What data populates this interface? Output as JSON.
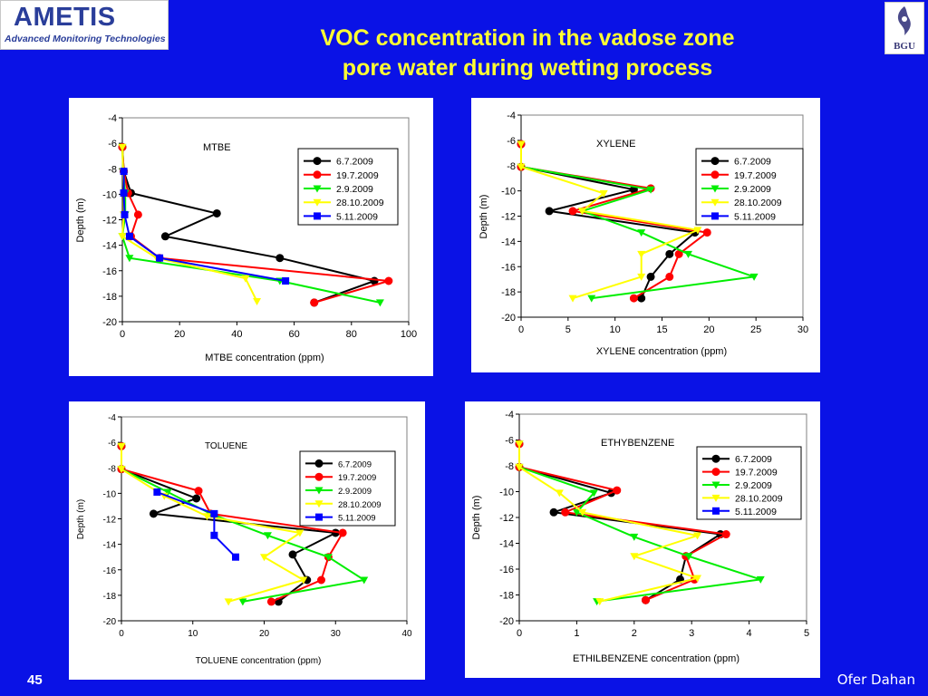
{
  "header": {
    "logo_text": "AMETIS",
    "logo_tagline": "Advanced Monitoring Technologies",
    "seal_text": "BGU",
    "title_line1": "VOC concentration in the vadose zone",
    "title_line2": "pore water during wetting process"
  },
  "footer": {
    "slide_number": "45",
    "author": "Ofer Dahan"
  },
  "colors": {
    "background": "#0a12e6",
    "title": "#ffff33",
    "series_6_7_2009": "#000000",
    "series_19_7_2009": "#ff0000",
    "series_2_9_2009": "#00ee00",
    "series_28_10_2009": "#ffff00",
    "series_5_11_2009": "#0000ff"
  },
  "chart_data": [
    {
      "type": "line",
      "title": "MTBE",
      "xlabel": "MTBE concentration (ppm)",
      "ylabel": "Depth (m)",
      "xlim": [
        0,
        100
      ],
      "ylim": [
        -20,
        -4
      ],
      "xticks": [
        "0",
        "20",
        "40",
        "60",
        "80",
        "100"
      ],
      "yticks": [
        "-4",
        "-6",
        "-8",
        "-10",
        "-12",
        "-14",
        "-16",
        "-18",
        "-20"
      ],
      "grid": false,
      "legend_position": "upper-right",
      "series": [
        {
          "name": "6.7.2009",
          "color": "#000000",
          "marker": "circle",
          "points": [
            [
              0,
              -6.3
            ],
            [
              0.5,
              -8.2
            ],
            [
              3,
              -9.9
            ],
            [
              33,
              -11.5
            ],
            [
              15,
              -13.3
            ],
            [
              55,
              -15
            ],
            [
              88,
              -16.8
            ],
            [
              67,
              -18.5
            ]
          ]
        },
        {
          "name": "19.7.2009",
          "color": "#ff0000",
          "marker": "circle",
          "points": [
            [
              0,
              -6.3
            ],
            [
              0.5,
              -8.2
            ],
            [
              2,
              -9.9
            ],
            [
              5.5,
              -11.6
            ],
            [
              3,
              -13.3
            ],
            [
              13,
              -15
            ],
            [
              93,
              -16.8
            ],
            [
              67,
              -18.5
            ]
          ]
        },
        {
          "name": "2.9.2009",
          "color": "#00ee00",
          "marker": "triangle",
          "points": [
            [
              0,
              -6.3
            ],
            [
              0.3,
              -8.2
            ],
            [
              1,
              -9.9
            ],
            [
              1,
              -11.6
            ],
            [
              0,
              -13.3
            ],
            [
              2.5,
              -15
            ],
            [
              55,
              -16.8
            ],
            [
              90,
              -18.5
            ]
          ]
        },
        {
          "name": "28.10.2009",
          "color": "#ffff00",
          "marker": "triangle",
          "points": [
            [
              0,
              -6.3
            ],
            [
              0.3,
              -8.2
            ],
            [
              0.5,
              -9.9
            ],
            [
              0.5,
              -11.6
            ],
            [
              0,
              -13.3
            ],
            [
              12,
              -15
            ],
            [
              43,
              -16.6
            ],
            [
              47,
              -18.4
            ]
          ]
        },
        {
          "name": "5.11.2009",
          "color": "#0000ff",
          "marker": "square",
          "points": [
            [
              0.5,
              -8.2
            ],
            [
              0.5,
              -9.9
            ],
            [
              0.8,
              -11.6
            ],
            [
              2.5,
              -13.3
            ],
            [
              13,
              -15
            ],
            [
              57,
              -16.8
            ]
          ]
        }
      ]
    },
    {
      "type": "line",
      "title": "XYLENE",
      "xlabel": "XYLENE concentration (ppm)",
      "ylabel": "Depth (m)",
      "xlim": [
        0,
        30
      ],
      "ylim": [
        -20,
        -4
      ],
      "xticks": [
        "0",
        "5",
        "10",
        "15",
        "20",
        "25",
        "30"
      ],
      "yticks": [
        "-4",
        "-6",
        "-8",
        "-10",
        "-12",
        "-14",
        "-16",
        "-18",
        "-20"
      ],
      "grid": false,
      "legend_position": "upper-right",
      "series": [
        {
          "name": "6.7.2009",
          "color": "#000000",
          "marker": "circle",
          "points": [
            [
              0,
              -6.3
            ],
            [
              0,
              -8.1
            ],
            [
              12,
              -9.9
            ],
            [
              3,
              -11.6
            ],
            [
              18.5,
              -13.3
            ],
            [
              15.8,
              -15
            ],
            [
              13.8,
              -16.8
            ],
            [
              12.8,
              -18.5
            ]
          ]
        },
        {
          "name": "19.7.2009",
          "color": "#ff0000",
          "marker": "circle",
          "points": [
            [
              0,
              -6.3
            ],
            [
              0,
              -8.1
            ],
            [
              13.8,
              -9.8
            ],
            [
              5.5,
              -11.6
            ],
            [
              19.8,
              -13.3
            ],
            [
              16.8,
              -15
            ],
            [
              15.8,
              -16.8
            ],
            [
              12,
              -18.5
            ]
          ]
        },
        {
          "name": "2.9.2009",
          "color": "#00ee00",
          "marker": "triangle",
          "points": [
            [
              0,
              -6.3
            ],
            [
              0,
              -8.1
            ],
            [
              13.8,
              -9.9
            ],
            [
              6.5,
              -11.6
            ],
            [
              12.8,
              -13.3
            ],
            [
              17.8,
              -15
            ],
            [
              24.8,
              -16.8
            ],
            [
              7.5,
              -18.5
            ]
          ]
        },
        {
          "name": "28.10.2009",
          "color": "#ffff00",
          "marker": "triangle",
          "points": [
            [
              0,
              -6.3
            ],
            [
              0,
              -8.1
            ],
            [
              8.8,
              -10.2
            ],
            [
              6.5,
              -11.6
            ],
            [
              18.8,
              -13.1
            ],
            [
              12.8,
              -15
            ],
            [
              12.8,
              -16.8
            ],
            [
              5.5,
              -18.5
            ]
          ]
        },
        {
          "name": "5.11.2009",
          "color": "#0000ff",
          "marker": "square",
          "points": []
        }
      ]
    },
    {
      "type": "line",
      "title": "TOLUENE",
      "xlabel": "TOLUENE concentration (ppm)",
      "ylabel": "Depth (m)",
      "xlim": [
        0,
        40
      ],
      "ylim": [
        -20,
        -4
      ],
      "xticks": [
        "0",
        "10",
        "20",
        "30",
        "40"
      ],
      "yticks": [
        "-4",
        "-6",
        "-8",
        "-10",
        "-12",
        "-14",
        "-16",
        "-18",
        "-20"
      ],
      "grid": false,
      "legend_position": "upper-right",
      "series": [
        {
          "name": "6.7.2009",
          "color": "#000000",
          "marker": "circle",
          "points": [
            [
              0,
              -6.3
            ],
            [
              0,
              -8.1
            ],
            [
              10.5,
              -10.4
            ],
            [
              4.5,
              -11.6
            ],
            [
              30,
              -13.1
            ],
            [
              24,
              -14.8
            ],
            [
              26,
              -16.8
            ],
            [
              22,
              -18.5
            ]
          ]
        },
        {
          "name": "19.7.2009",
          "color": "#ff0000",
          "marker": "circle",
          "points": [
            [
              0,
              -6.3
            ],
            [
              0,
              -8.1
            ],
            [
              10.8,
              -9.8
            ],
            [
              12.5,
              -11.6
            ],
            [
              31,
              -13.1
            ],
            [
              29,
              -15
            ],
            [
              28,
              -16.8
            ],
            [
              21,
              -18.5
            ]
          ]
        },
        {
          "name": "2.9.2009",
          "color": "#00ee00",
          "marker": "triangle",
          "points": [
            [
              0,
              -6.3
            ],
            [
              0,
              -8.1
            ],
            [
              6.5,
              -9.9
            ],
            [
              12.5,
              -11.6
            ],
            [
              20.5,
              -13.3
            ],
            [
              29,
              -15
            ],
            [
              34,
              -16.8
            ],
            [
              17,
              -18.5
            ]
          ]
        },
        {
          "name": "28.10.2009",
          "color": "#ffff00",
          "marker": "triangle",
          "points": [
            [
              0,
              -6.3
            ],
            [
              0,
              -8.1
            ],
            [
              6,
              -10.2
            ],
            [
              12,
              -11.8
            ],
            [
              25,
              -13.1
            ],
            [
              20,
              -15
            ],
            [
              25.5,
              -16.8
            ],
            [
              15,
              -18.5
            ]
          ]
        },
        {
          "name": "5.11.2009",
          "color": "#0000ff",
          "marker": "square",
          "points": [
            [
              5,
              -9.9
            ],
            [
              13,
              -11.6
            ],
            [
              13,
              -13.3
            ],
            [
              16,
              -15
            ]
          ]
        }
      ]
    },
    {
      "type": "line",
      "title": "ETHYBENZENE",
      "xlabel": "ETHILBENZENE concentration (ppm)",
      "ylabel": "Depth (m)",
      "xlim": [
        0,
        5
      ],
      "ylim": [
        -20,
        -4
      ],
      "xticks": [
        "0",
        "1",
        "2",
        "3",
        "4",
        "5"
      ],
      "yticks": [
        "-4",
        "-6",
        "-8",
        "-10",
        "-12",
        "-14",
        "-16",
        "-18",
        "-20"
      ],
      "grid": false,
      "legend_position": "upper-right",
      "series": [
        {
          "name": "6.7.2009",
          "color": "#000000",
          "marker": "circle",
          "points": [
            [
              0,
              -6.3
            ],
            [
              0,
              -8.1
            ],
            [
              1.6,
              -10.1
            ],
            [
              0.6,
              -11.6
            ],
            [
              3.5,
              -13.3
            ],
            [
              2.9,
              -15
            ],
            [
              2.8,
              -16.8
            ],
            [
              2.2,
              -18.4
            ]
          ]
        },
        {
          "name": "19.7.2009",
          "color": "#ff0000",
          "marker": "circle",
          "points": [
            [
              0,
              -6.3
            ],
            [
              0,
              -8.1
            ],
            [
              1.7,
              -9.9
            ],
            [
              0.8,
              -11.6
            ],
            [
              3.6,
              -13.3
            ],
            [
              2.9,
              -15
            ],
            [
              3.05,
              -16.8
            ],
            [
              2.2,
              -18.4
            ]
          ]
        },
        {
          "name": "2.9.2009",
          "color": "#00ee00",
          "marker": "triangle",
          "points": [
            [
              0,
              -6.3
            ],
            [
              0,
              -8.1
            ],
            [
              1.3,
              -10.1
            ],
            [
              1,
              -11.6
            ],
            [
              2,
              -13.5
            ],
            [
              2.95,
              -15
            ],
            [
              4.2,
              -16.8
            ],
            [
              1.35,
              -18.5
            ]
          ]
        },
        {
          "name": "28.10.2009",
          "color": "#ffff00",
          "marker": "triangle",
          "points": [
            [
              0,
              -6.3
            ],
            [
              0,
              -8.1
            ],
            [
              0.7,
              -10.1
            ],
            [
              1.1,
              -11.6
            ],
            [
              3.1,
              -13.4
            ],
            [
              2,
              -15
            ],
            [
              3.1,
              -16.7
            ],
            [
              1.4,
              -18.5
            ]
          ]
        },
        {
          "name": "5.11.2009",
          "color": "#0000ff",
          "marker": "square",
          "points": []
        }
      ]
    }
  ]
}
